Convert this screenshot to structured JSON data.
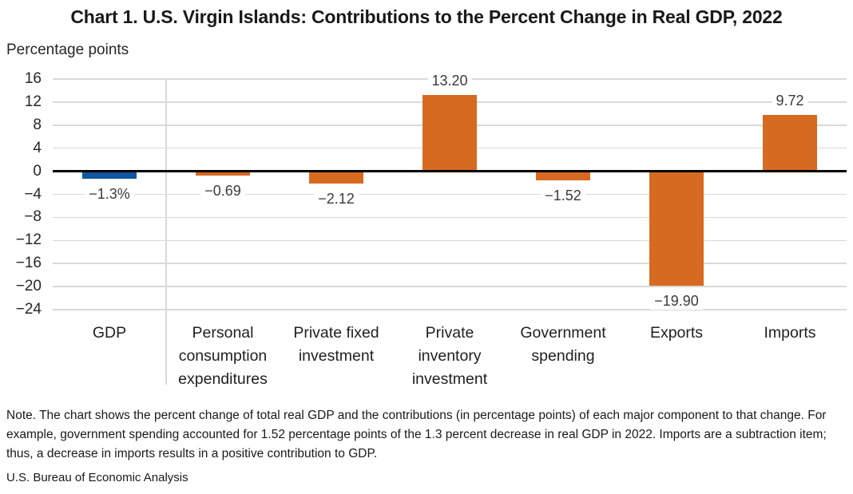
{
  "page": {
    "title": "Chart 1. U.S. Virgin Islands: Contributions to the Percent Change in Real GDP, 2022",
    "note": "Note. The chart shows the percent change of total real GDP and the contributions (in percentage points) of each major component to that change. For example, government spending accounted for 1.52 percentage points of the 1.3 percent decrease in real GDP in 2022. Imports are a subtraction item; thus, a decrease in imports results in a positive contribution to GDP.",
    "source": "U.S. Bureau of Economic Analysis"
  },
  "chart_data": {
    "type": "bar",
    "title": "Chart 1. U.S. Virgin Islands: Contributions to the Percent Change in Real GDP, 2022",
    "xlabel": "",
    "ylabel": "Percentage points",
    "ylim": [
      -24,
      16
    ],
    "ytick_step": 4,
    "yticks": [
      16,
      12,
      8,
      4,
      0,
      -4,
      -8,
      -12,
      -16,
      -20,
      -24
    ],
    "ytick_labels": [
      "16",
      "12",
      "8",
      "4",
      "0",
      "−4",
      "−8",
      "−12",
      "−16",
      "−20",
      "−24"
    ],
    "grid": true,
    "legend": "none",
    "categories": [
      "GDP",
      "Personal consumption expenditures",
      "Private fixed investment",
      "Private inventory investment",
      "Government spending",
      "Exports",
      "Imports"
    ],
    "values": [
      -1.3,
      -0.69,
      -2.12,
      13.2,
      -1.52,
      -19.9,
      9.72
    ],
    "data_labels": [
      "−1.3%",
      "−0.69",
      "−2.12",
      "13.20",
      "−1.52",
      "−19.90",
      "9.72"
    ],
    "bar_colors": [
      "#1057A0",
      "#D76A21",
      "#D76A21",
      "#D76A21",
      "#D76A21",
      "#D76A21",
      "#D76A21"
    ],
    "colors": {
      "gdp_bar": "#1057A0",
      "component_bar": "#D76A21",
      "gridline": "#D9D9D9",
      "zero_line": "#000000",
      "value_label_text": "#3a3a3a"
    },
    "divider_after_first_category": true
  }
}
